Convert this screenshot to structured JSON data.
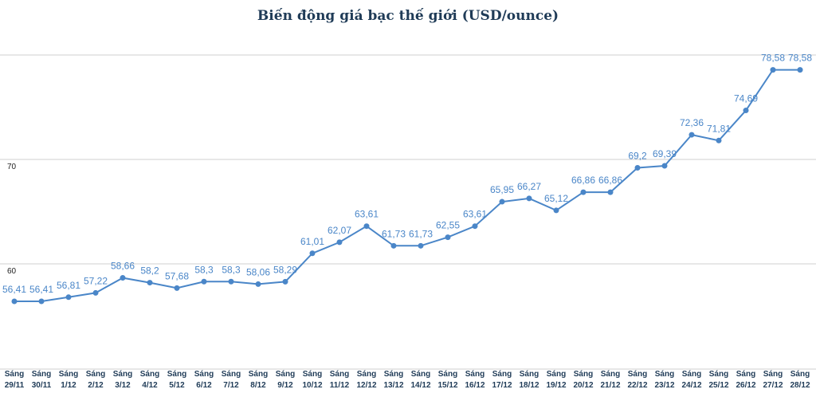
{
  "chart_data": {
    "type": "line",
    "title": "Biến động giá bạc thế giới (USD/ounce)",
    "xlabel": "",
    "ylabel": "",
    "ylim": [
      50,
      85
    ],
    "yticks": [
      60,
      70
    ],
    "grid": true,
    "legend": "none",
    "series_color": "#4a86c8",
    "categories": [
      [
        "Sáng",
        "29/11"
      ],
      [
        "Sáng",
        "30/11"
      ],
      [
        "Sáng",
        "1/12"
      ],
      [
        "Sáng",
        "2/12"
      ],
      [
        "Sáng",
        "3/12"
      ],
      [
        "Sáng",
        "4/12"
      ],
      [
        "Sáng",
        "5/12"
      ],
      [
        "Sáng",
        "6/12"
      ],
      [
        "Sáng",
        "7/12"
      ],
      [
        "Sáng",
        "8/12"
      ],
      [
        "Sáng",
        "9/12"
      ],
      [
        "Sáng",
        "10/12"
      ],
      [
        "Sáng",
        "11/12"
      ],
      [
        "Sáng",
        "12/12"
      ],
      [
        "Sáng",
        "13/12"
      ],
      [
        "Sáng",
        "14/12"
      ],
      [
        "Sáng",
        "15/12"
      ],
      [
        "Sáng",
        "16/12"
      ],
      [
        "Sáng",
        "17/12"
      ],
      [
        "Sáng",
        "18/12"
      ],
      [
        "Sáng",
        "19/12"
      ],
      [
        "Sáng",
        "20/12"
      ],
      [
        "Sáng",
        "21/12"
      ],
      [
        "Sáng",
        "22/12"
      ],
      [
        "Sáng",
        "23/12"
      ],
      [
        "Sáng",
        "24/12"
      ],
      [
        "Sáng",
        "25/12"
      ],
      [
        "Sáng",
        "26/12"
      ],
      [
        "Sáng",
        "27/12"
      ],
      [
        "Sáng",
        "28/12"
      ]
    ],
    "values": [
      56.41,
      56.41,
      56.81,
      57.22,
      58.66,
      58.2,
      57.68,
      58.3,
      58.3,
      58.06,
      58.29,
      61.01,
      62.07,
      63.61,
      61.73,
      61.73,
      62.55,
      63.61,
      65.95,
      66.27,
      65.12,
      66.86,
      66.86,
      69.2,
      69.39,
      72.36,
      71.81,
      74.69,
      78.58,
      78.58
    ],
    "labels": [
      "56,41",
      "56,41",
      "56,81",
      "57,22",
      "58,66",
      "58,2",
      "57,68",
      "58,3",
      "58,3",
      "58,06",
      "58,29",
      "61,01",
      "62,07",
      "63,61",
      "61,73",
      "61,73",
      "62,55",
      "63,61",
      "65,95",
      "66,27",
      "65,12",
      "66,86",
      "66,86",
      "69,2",
      "69,39",
      "72,36",
      "71,81",
      "74,69",
      "78,58",
      "78,58"
    ]
  }
}
